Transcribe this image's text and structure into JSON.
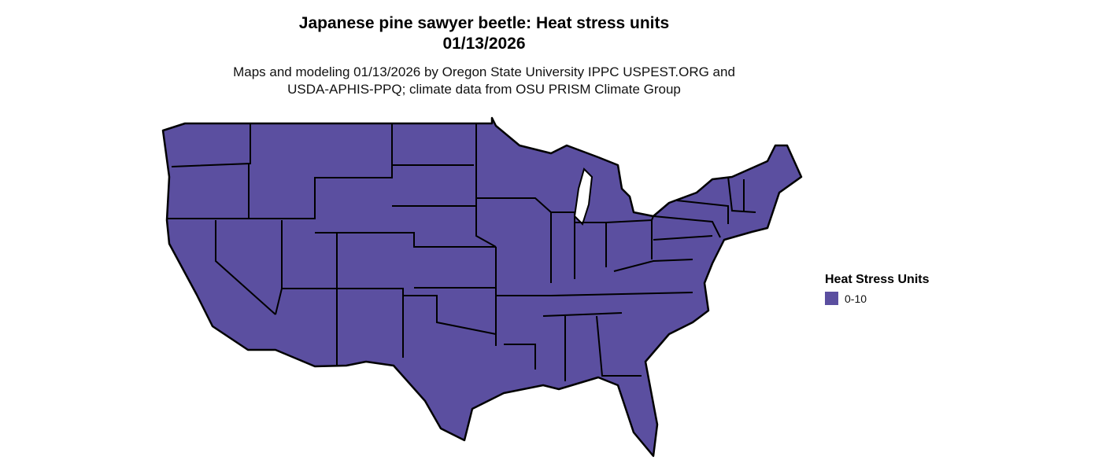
{
  "title_line1": "Japanese pine sawyer beetle: Heat stress units",
  "title_line2": "01/13/2026",
  "subtitle_line1": "Maps and modeling 01/13/2026 by Oregon State University IPPC USPEST.ORG and",
  "subtitle_line2": "USDA-APHIS-PPQ; climate data from OSU PRISM Climate Group",
  "map": {
    "region": "Contiguous United States",
    "fill_color": "#5b4fa0",
    "border_color": "#000000"
  },
  "legend": {
    "title": "Heat Stress Units",
    "items": [
      {
        "label": "0-10",
        "color": "#5b4fa0"
      }
    ]
  }
}
